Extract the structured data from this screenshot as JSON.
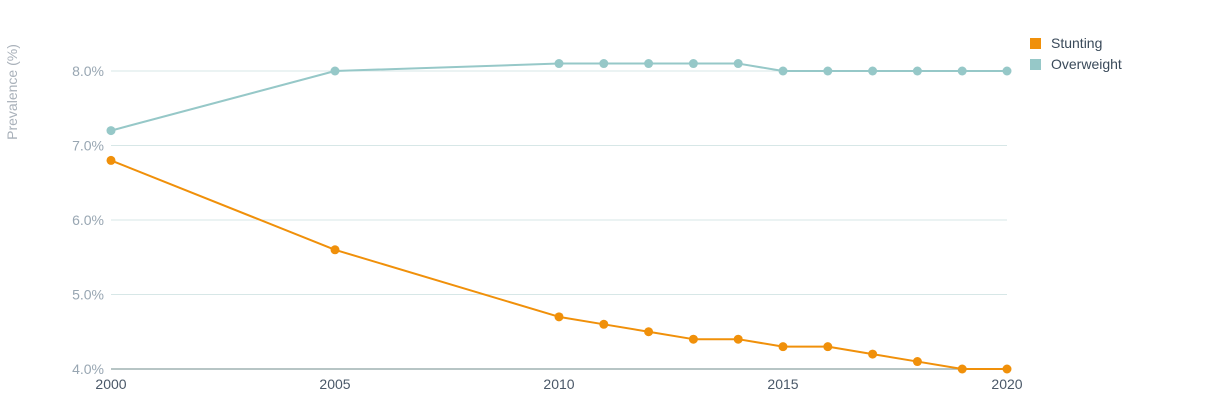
{
  "chart_data": {
    "type": "line",
    "title": "",
    "xlabel": "",
    "ylabel": "Prevalence (%)",
    "ylim": [
      4.0,
      8.5
    ],
    "yticks": [
      "4.0%",
      "5.0%",
      "6.0%",
      "7.0%",
      "8.0%"
    ],
    "ytick_values": [
      4.0,
      5.0,
      6.0,
      7.0,
      8.0
    ],
    "xlim": [
      2000,
      2020
    ],
    "xticks": [
      "2000",
      "2005",
      "2010",
      "2015",
      "2020"
    ],
    "xtick_values": [
      2000,
      2005,
      2010,
      2015,
      2020
    ],
    "grid": true,
    "legend_position": "top-right",
    "series": [
      {
        "name": "Stunting",
        "color": "#f0900a",
        "x": [
          2000,
          2005,
          2010,
          2011,
          2012,
          2013,
          2014,
          2015,
          2016,
          2017,
          2018,
          2019,
          2020
        ],
        "values": [
          6.8,
          5.6,
          4.7,
          4.6,
          4.5,
          4.4,
          4.4,
          4.3,
          4.3,
          4.2,
          4.1,
          4.0,
          4.0
        ]
      },
      {
        "name": "Overweight",
        "color": "#96c8c8",
        "x": [
          2000,
          2005,
          2010,
          2011,
          2012,
          2013,
          2014,
          2015,
          2016,
          2017,
          2018,
          2019,
          2020
        ],
        "values": [
          7.2,
          8.0,
          8.1,
          8.1,
          8.1,
          8.1,
          8.1,
          8.0,
          8.0,
          8.0,
          8.0,
          8.0,
          8.0
        ]
      }
    ]
  }
}
